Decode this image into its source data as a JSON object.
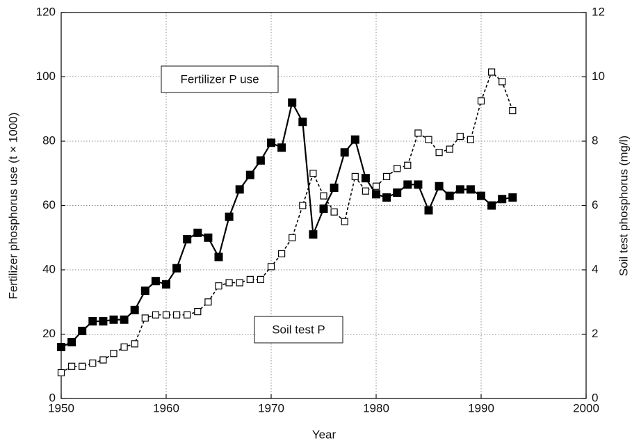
{
  "chart_data": {
    "type": "line",
    "x_label": "Year",
    "y_label": "Fertilizer phosphorus use (t × 1000)",
    "y2_label": "Soil test phosphorus (mg/l)",
    "x": [
      1950,
      1951,
      1952,
      1953,
      1954,
      1955,
      1956,
      1957,
      1958,
      1959,
      1960,
      1961,
      1962,
      1963,
      1964,
      1965,
      1966,
      1967,
      1968,
      1969,
      1970,
      1971,
      1972,
      1973,
      1974,
      1975,
      1976,
      1977,
      1978,
      1979,
      1980,
      1981,
      1982,
      1983,
      1984,
      1985,
      1986,
      1987,
      1988,
      1989,
      1990,
      1991,
      1992,
      1993
    ],
    "series": [
      {
        "name": "Fertilizer P use",
        "color": "#000000",
        "marker": "filled-square",
        "dashed": false,
        "values": [
          16,
          17.5,
          21,
          24,
          24,
          24.5,
          24.5,
          27.5,
          33.5,
          36.5,
          35.5,
          40.5,
          49.5,
          51.5,
          50,
          44,
          56.5,
          65,
          69.5,
          74,
          79.5,
          78,
          92,
          86,
          51,
          59,
          65.5,
          76.5,
          80.5,
          68.5,
          63.5,
          62.5,
          64,
          66.5,
          66.5,
          58.5,
          66,
          63,
          65,
          65,
          63,
          60,
          62,
          62.5
        ]
      },
      {
        "name": "Soil test P",
        "color": "#000000",
        "marker": "open-square",
        "dashed": true,
        "axis": "y2",
        "values": [
          0.8,
          1.0,
          1.0,
          1.1,
          1.2,
          1.4,
          1.6,
          1.7,
          2.5,
          2.6,
          2.6,
          2.6,
          2.6,
          2.7,
          3.0,
          3.5,
          3.6,
          3.6,
          3.7,
          3.7,
          4.1,
          4.5,
          5.0,
          6.0,
          7.0,
          6.3,
          5.8,
          5.5,
          6.9,
          6.45,
          6.6,
          6.9,
          7.15,
          7.25,
          8.25,
          8.05,
          7.65,
          7.75,
          8.15,
          8.05,
          9.25,
          10.15,
          9.85,
          8.95
        ]
      }
    ],
    "xlim": [
      1950,
      2000
    ],
    "xticks": [
      1950,
      1960,
      1970,
      1980,
      1990,
      2000
    ],
    "ylim": [
      0,
      120
    ],
    "yticks": [
      0,
      20,
      40,
      60,
      80,
      100,
      120
    ],
    "y2lim": [
      0,
      12
    ],
    "y2ticks": [
      0,
      2,
      4,
      6,
      8,
      10,
      12
    ],
    "grid": true
  }
}
